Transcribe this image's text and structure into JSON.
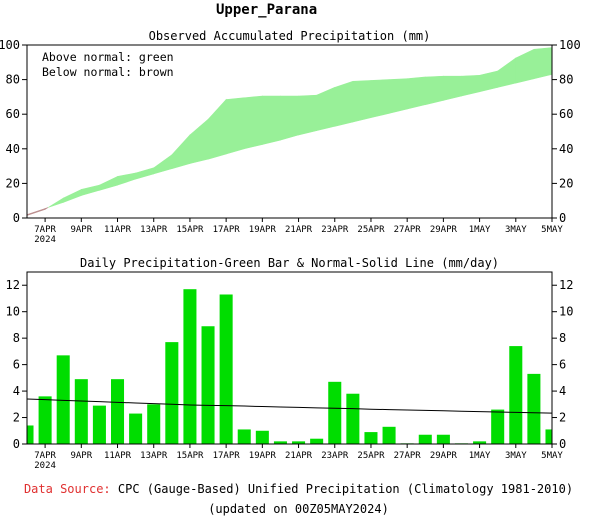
{
  "page_title": "Upper_Parana",
  "chart_data": [
    {
      "type": "area",
      "title": "Observed Accumulated Precipitation (mm)",
      "legend_notes": [
        "Above normal: green",
        "Below normal: brown"
      ],
      "legend_placement": "top-left",
      "ylim": [
        0,
        100
      ],
      "yticks": [
        0,
        20,
        40,
        60,
        80,
        100
      ],
      "x_tick_labels": [
        "7APR",
        "9APR",
        "11APR",
        "13APR",
        "15APR",
        "17APR",
        "19APR",
        "21APR",
        "23APR",
        "25APR",
        "27APR",
        "29APR",
        "1MAY",
        "3MAY",
        "5MAY"
      ],
      "x_year_label": "2024",
      "colors": {
        "above": "#98f098",
        "below": "#bc8f8f",
        "axis": "#000000"
      },
      "x": [
        "6APR",
        "7APR",
        "8APR",
        "9APR",
        "10APR",
        "11APR",
        "12APR",
        "13APR",
        "14APR",
        "15APR",
        "16APR",
        "17APR",
        "18APR",
        "19APR",
        "20APR",
        "21APR",
        "22APR",
        "23APR",
        "24APR",
        "25APR",
        "26APR",
        "27APR",
        "28APR",
        "29APR",
        "30APR",
        "1MAY",
        "2MAY",
        "3MAY",
        "4MAY",
        "5MAY"
      ],
      "series": [
        {
          "name": "observed",
          "values": [
            1.5,
            5,
            11.5,
            16.5,
            19,
            24,
            26,
            29,
            36.5,
            48,
            57,
            68.5,
            69.5,
            70.5,
            70.5,
            70.5,
            71,
            75.5,
            79,
            79.5,
            80,
            80.5,
            81.5,
            82,
            82,
            82.5,
            85,
            92.5,
            97.5,
            98.5
          ]
        },
        {
          "name": "normal",
          "values": [
            2,
            5.5,
            9,
            13,
            16,
            19,
            22.5,
            25.5,
            28.5,
            31.5,
            34,
            37,
            40,
            42.5,
            45,
            48,
            50.5,
            53,
            55.5,
            58,
            60.5,
            63,
            65.5,
            68,
            70.5,
            73,
            75.5,
            78,
            80.5,
            83
          ]
        }
      ]
    },
    {
      "type": "bar",
      "title": "Daily Precipitation-Green Bar & Normal-Solid Line (mm/day)",
      "ylim": [
        0,
        13
      ],
      "yticks": [
        0,
        2,
        4,
        6,
        8,
        10,
        12
      ],
      "x_tick_labels": [
        "7APR",
        "9APR",
        "11APR",
        "13APR",
        "15APR",
        "17APR",
        "19APR",
        "21APR",
        "23APR",
        "25APR",
        "27APR",
        "29APR",
        "1MAY",
        "3MAY",
        "5MAY"
      ],
      "x_year_label": "2024",
      "colors": {
        "bar": "#00dd00",
        "normal_line": "#000000"
      },
      "categories": [
        "6APR",
        "7APR",
        "8APR",
        "9APR",
        "10APR",
        "11APR",
        "12APR",
        "13APR",
        "14APR",
        "15APR",
        "16APR",
        "17APR",
        "18APR",
        "19APR",
        "20APR",
        "21APR",
        "22APR",
        "23APR",
        "24APR",
        "25APR",
        "26APR",
        "27APR",
        "28APR",
        "29APR",
        "30APR",
        "1MAY",
        "2MAY",
        "3MAY",
        "4MAY",
        "5MAY"
      ],
      "series": [
        {
          "name": "observed",
          "values": [
            1.4,
            3.6,
            6.7,
            4.9,
            2.9,
            4.9,
            2.3,
            3.0,
            7.7,
            11.7,
            8.9,
            11.3,
            1.1,
            1.0,
            0.2,
            0.2,
            0.4,
            4.7,
            3.8,
            0.9,
            1.3,
            0.05,
            0.7,
            0.7,
            0.05,
            0.2,
            2.6,
            7.4,
            5.3,
            1.1
          ]
        },
        {
          "name": "normal",
          "values": [
            3.4,
            3.35,
            3.3,
            3.25,
            3.2,
            3.15,
            3.1,
            3.05,
            3.0,
            2.95,
            2.92,
            2.9,
            2.87,
            2.83,
            2.8,
            2.77,
            2.73,
            2.7,
            2.67,
            2.63,
            2.6,
            2.57,
            2.54,
            2.51,
            2.48,
            2.45,
            2.42,
            2.39,
            2.36,
            2.33
          ]
        }
      ]
    }
  ],
  "footer": {
    "source_label": "Data Source:",
    "source_text": "CPC (Gauge-Based) Unified Precipitation (Climatology 1981-2010)",
    "updated": "(updated on 00Z05MAY2024)"
  },
  "colors": {
    "source_label": "#e03030"
  }
}
